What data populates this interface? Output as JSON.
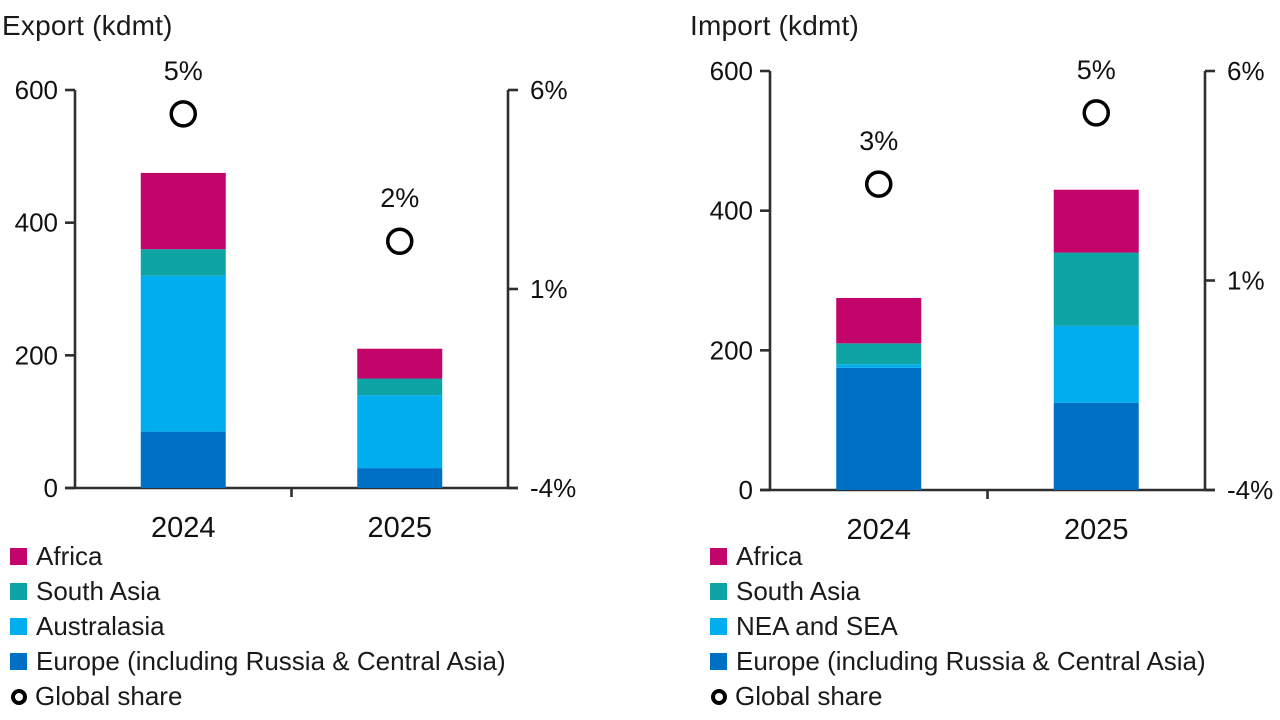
{
  "chart_data": [
    {
      "type": "bar",
      "stacked": true,
      "title": "Export (kdmt)",
      "categories": [
        "2024",
        "2025"
      ],
      "series": [
        {
          "name": "Africa",
          "color": "#c2046b",
          "values": [
            115,
            45
          ]
        },
        {
          "name": "South Asia",
          "color": "#0ea4a5",
          "values": [
            40,
            25
          ]
        },
        {
          "name": "Australasia",
          "color": "#00aeef",
          "values": [
            235,
            110
          ]
        },
        {
          "name": "Europe (including Russia & Central Asia)",
          "color": "#0070c4",
          "values": [
            85,
            30
          ]
        }
      ],
      "totals": [
        475,
        210
      ],
      "markers": {
        "name": "Global share",
        "values": [
          5.4,
          2.2
        ],
        "labels": [
          "5%",
          "2%"
        ],
        "color": "#000000"
      },
      "left_axis": {
        "range": [
          0,
          600
        ],
        "ticks": [
          600,
          400,
          200,
          0
        ]
      },
      "right_axis": {
        "range": [
          -4,
          6
        ],
        "tick_values": [
          6,
          1,
          -4
        ],
        "tick_labels": [
          "6%",
          "1%",
          "-4%"
        ]
      },
      "legend_position": "bottom-left",
      "grid": false
    },
    {
      "type": "bar",
      "stacked": true,
      "title": "Import (kdmt)",
      "categories": [
        "2024",
        "2025"
      ],
      "series": [
        {
          "name": "Africa",
          "color": "#c2046b",
          "values": [
            65,
            90
          ]
        },
        {
          "name": "South Asia",
          "color": "#0ea4a5",
          "values": [
            30,
            105
          ]
        },
        {
          "name": "NEA and SEA",
          "color": "#00aeef",
          "values": [
            5,
            110
          ]
        },
        {
          "name": "Europe (including Russia & Central Asia)",
          "color": "#0070c4",
          "values": [
            175,
            125
          ]
        }
      ],
      "totals": [
        275,
        430
      ],
      "markers": {
        "name": "Global share",
        "values": [
          3.3,
          5.0
        ],
        "labels": [
          "3%",
          "5%"
        ],
        "color": "#000000"
      },
      "left_axis": {
        "range": [
          0,
          600
        ],
        "ticks": [
          600,
          400,
          200,
          0
        ]
      },
      "right_axis": {
        "range": [
          -4,
          6
        ],
        "tick_values": [
          6,
          1,
          -4
        ],
        "tick_labels": [
          "6%",
          "1%",
          "-4%"
        ]
      },
      "legend_position": "bottom-left",
      "grid": false
    }
  ]
}
